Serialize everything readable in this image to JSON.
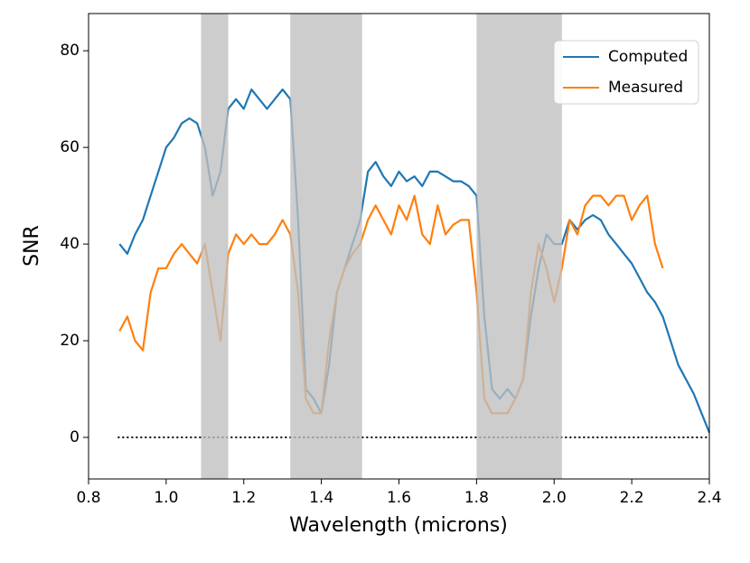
{
  "chart_data": {
    "type": "line",
    "xlabel": "Wavelength (microns)",
    "ylabel": "SNR",
    "x": [
      0.88,
      0.9,
      0.92,
      0.94,
      0.96,
      0.98,
      1.0,
      1.02,
      1.04,
      1.06,
      1.08,
      1.1,
      1.12,
      1.14,
      1.16,
      1.18,
      1.2,
      1.22,
      1.24,
      1.26,
      1.28,
      1.3,
      1.32,
      1.34,
      1.36,
      1.38,
      1.4,
      1.42,
      1.44,
      1.46,
      1.48,
      1.5,
      1.52,
      1.54,
      1.56,
      1.58,
      1.6,
      1.62,
      1.64,
      1.66,
      1.68,
      1.7,
      1.72,
      1.74,
      1.76,
      1.78,
      1.8,
      1.82,
      1.84,
      1.86,
      1.88,
      1.9,
      1.92,
      1.94,
      1.96,
      1.98,
      2.0,
      2.02,
      2.04,
      2.06,
      2.08,
      2.1,
      2.12,
      2.14,
      2.16,
      2.18,
      2.2,
      2.22,
      2.24,
      2.26,
      2.28,
      2.3,
      2.32,
      2.34,
      2.36,
      2.38,
      2.4
    ],
    "series": [
      {
        "name": "Computed",
        "color": "#1f77b4",
        "values": [
          40,
          38,
          42,
          45,
          50,
          55,
          60,
          62,
          65,
          66,
          65,
          60,
          50,
          55,
          68,
          70,
          68,
          72,
          70,
          68,
          70,
          72,
          70,
          45,
          10,
          8,
          5,
          15,
          30,
          35,
          40,
          45,
          55,
          57,
          54,
          52,
          55,
          53,
          54,
          52,
          55,
          55,
          54,
          53,
          53,
          52,
          50,
          25,
          10,
          8,
          10,
          8,
          12,
          25,
          35,
          42,
          40,
          40,
          45,
          43,
          45,
          46,
          45,
          42,
          40,
          38,
          36,
          33,
          30,
          28,
          25,
          20,
          15,
          12,
          9,
          5,
          1
        ]
      },
      {
        "name": "Measured",
        "color": "#ff7f0e",
        "values": [
          22,
          25,
          20,
          18,
          30,
          35,
          35,
          38,
          40,
          38,
          36,
          40,
          30,
          20,
          38,
          42,
          40,
          42,
          40,
          40,
          42,
          45,
          42,
          30,
          8,
          5,
          5,
          20,
          30,
          35,
          38,
          40,
          45,
          48,
          45,
          42,
          48,
          45,
          50,
          42,
          40,
          48,
          42,
          44,
          45,
          45,
          30,
          8,
          5,
          5,
          5,
          8,
          12,
          30,
          40,
          35,
          28,
          35,
          45,
          42,
          48,
          50,
          50,
          48,
          50,
          50,
          45,
          48,
          50,
          40,
          35,
          null,
          null,
          null,
          null,
          null,
          null
        ]
      }
    ],
    "shaded_regions": [
      [
        1.09,
        1.16
      ],
      [
        1.32,
        1.505
      ],
      [
        1.8,
        2.02
      ]
    ],
    "hline": 0,
    "xlim": [
      0.8,
      2.4
    ],
    "ylim": [
      -8.6,
      87.7
    ],
    "xticks": [
      {
        "value": 0.8,
        "label": "0.8"
      },
      {
        "value": 1.0,
        "label": "1.0"
      },
      {
        "value": 1.2,
        "label": "1.2"
      },
      {
        "value": 1.4,
        "label": "1.4"
      },
      {
        "value": 1.6,
        "label": "1.6"
      },
      {
        "value": 1.8,
        "label": "1.8"
      },
      {
        "value": 2.0,
        "label": "2.0"
      },
      {
        "value": 2.2,
        "label": "2.2"
      },
      {
        "value": 2.4,
        "label": "2.4"
      }
    ],
    "yticks": [
      0,
      20,
      40,
      60,
      80
    ],
    "grid": false,
    "legend": "upper right"
  }
}
